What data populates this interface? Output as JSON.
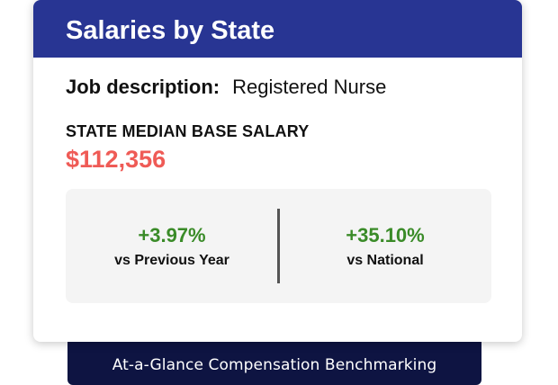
{
  "card": {
    "title": "Salaries by State",
    "job_label": "Job description:",
    "job_value": "Registered Nurse",
    "median_label": "STATE MEDIAN BASE SALARY",
    "median_value": "$112,356"
  },
  "stats": {
    "previous_year": {
      "value": "+3.97%",
      "caption": "vs Previous Year"
    },
    "national": {
      "value": "+35.10%",
      "caption": "vs National"
    }
  },
  "footer": {
    "text": "At-a-Glance Compensation Benchmarking"
  },
  "colors": {
    "header_bg": "#283593",
    "salary_red": "#ef5b56",
    "positive_green": "#3a8b28",
    "footer_bg": "#0e1442"
  }
}
